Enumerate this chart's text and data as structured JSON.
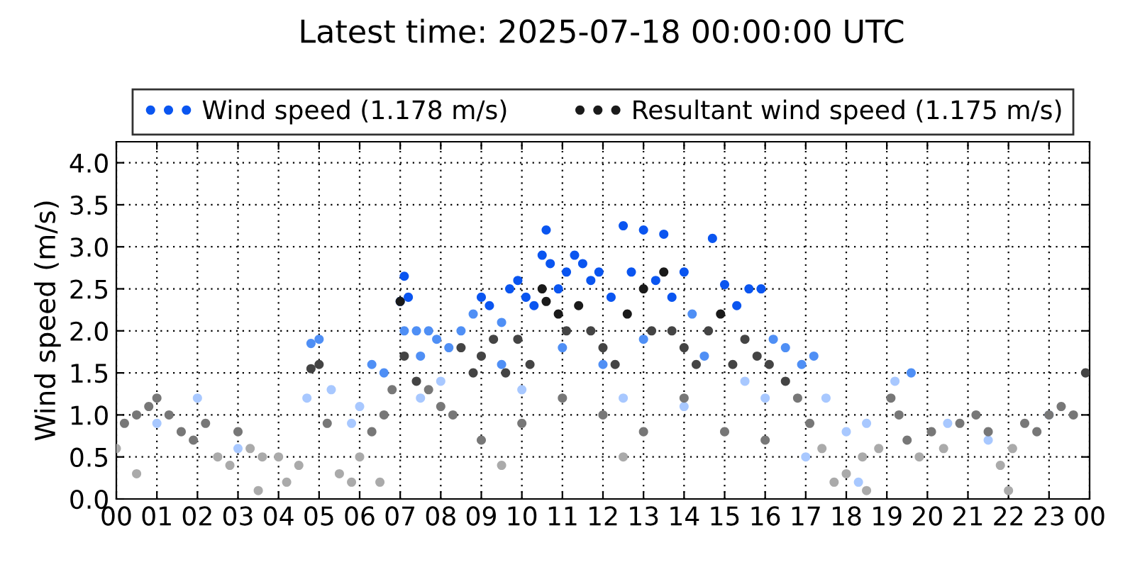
{
  "chart_data": {
    "type": "scatter",
    "title": "Latest time: 2025-07-18 00:00:00 UTC",
    "ylabel": "Wind speed (m/s)",
    "xlim": [
      0,
      24
    ],
    "ylim": [
      0,
      4.25
    ],
    "xticks": [
      {
        "value": 0,
        "label": "00"
      },
      {
        "value": 1,
        "label": "01"
      },
      {
        "value": 2,
        "label": "02"
      },
      {
        "value": 3,
        "label": "03"
      },
      {
        "value": 4,
        "label": "04"
      },
      {
        "value": 5,
        "label": "05"
      },
      {
        "value": 6,
        "label": "06"
      },
      {
        "value": 7,
        "label": "07"
      },
      {
        "value": 8,
        "label": "08"
      },
      {
        "value": 9,
        "label": "09"
      },
      {
        "value": 10,
        "label": "10"
      },
      {
        "value": 11,
        "label": "11"
      },
      {
        "value": 12,
        "label": "12"
      },
      {
        "value": 13,
        "label": "13"
      },
      {
        "value": 14,
        "label": "14"
      },
      {
        "value": 15,
        "label": "15"
      },
      {
        "value": 16,
        "label": "16"
      },
      {
        "value": 17,
        "label": "17"
      },
      {
        "value": 18,
        "label": "18"
      },
      {
        "value": 19,
        "label": "19"
      },
      {
        "value": 20,
        "label": "20"
      },
      {
        "value": 21,
        "label": "21"
      },
      {
        "value": 22,
        "label": "22"
      },
      {
        "value": 23,
        "label": "23"
      },
      {
        "value": 24,
        "label": "00"
      }
    ],
    "yticks": [
      {
        "value": 0,
        "label": "0.0"
      },
      {
        "value": 0.5,
        "label": "0.5"
      },
      {
        "value": 1,
        "label": "1.0"
      },
      {
        "value": 1.5,
        "label": "1.5"
      },
      {
        "value": 2,
        "label": "2.0"
      },
      {
        "value": 2.5,
        "label": "2.5"
      },
      {
        "value": 3,
        "label": "3.0"
      },
      {
        "value": 3.5,
        "label": "3.5"
      },
      {
        "value": 4,
        "label": "4.0"
      }
    ],
    "grid": true,
    "legend": "top",
    "marker": "circle",
    "series": [
      {
        "name": "Wind speed (1.178 m/s)",
        "color": "#0a55f0",
        "x": [
          4.8,
          5.0,
          4.7,
          5.3,
          5.8,
          6.3,
          6.6,
          7.0,
          7.1,
          7.2,
          7.1,
          7.4,
          7.5,
          7.7,
          7.9,
          8.2,
          8.5,
          8.8,
          9.0,
          9.2,
          9.5,
          9.7,
          9.9,
          10.1,
          10.3,
          10.5,
          10.6,
          10.7,
          10.9,
          11.1,
          11.3,
          11.5,
          11.7,
          11.9,
          12.2,
          12.5,
          12.7,
          13.0,
          13.3,
          13.5,
          13.7,
          14.0,
          14.2,
          14.7,
          15.0,
          15.3,
          15.6,
          15.9,
          16.2,
          16.5,
          16.9,
          17.2,
          17.5,
          18.0,
          18.5,
          19.2,
          19.6,
          20.5,
          21.5,
          23.0,
          2.0,
          3.0,
          1.0,
          6.0,
          8.0,
          9.5,
          11.0,
          12.0,
          13.0,
          14.5,
          15.5,
          16.0,
          17.0,
          18.3,
          7.5,
          10.0,
          12.5,
          14.0
        ],
        "values": [
          1.85,
          1.9,
          1.2,
          1.3,
          0.9,
          1.6,
          1.5,
          2.35,
          2.65,
          2.4,
          2.0,
          2.0,
          1.7,
          2.0,
          1.9,
          1.8,
          2.0,
          2.2,
          2.4,
          2.3,
          2.1,
          2.5,
          2.6,
          2.4,
          2.3,
          2.9,
          3.2,
          2.8,
          2.5,
          2.7,
          2.9,
          2.8,
          2.6,
          2.7,
          2.4,
          3.25,
          2.7,
          3.2,
          2.6,
          3.15,
          2.4,
          2.7,
          2.2,
          3.1,
          2.55,
          2.3,
          2.5,
          2.5,
          1.9,
          1.8,
          1.6,
          1.7,
          1.2,
          0.8,
          0.9,
          1.4,
          1.5,
          0.9,
          0.7,
          1.0,
          1.2,
          0.6,
          0.9,
          1.1,
          1.4,
          1.6,
          1.8,
          1.6,
          1.9,
          1.7,
          1.4,
          1.2,
          0.5,
          0.2,
          1.2,
          1.3,
          1.2,
          1.1
        ],
        "colors": [
          "#4f8ff5",
          "#4f8ff5",
          "#a8c8ff",
          "#a8c8ff",
          "#a8c8ff",
          "#4f8ff5",
          "#4f8ff5",
          "#0a55f0",
          "#0a55f0",
          "#0a55f0",
          "#4f8ff5",
          "#4f8ff5",
          "#4f8ff5",
          "#4f8ff5",
          "#4f8ff5",
          "#4f8ff5",
          "#4f8ff5",
          "#4f8ff5",
          "#0a55f0",
          "#0a55f0",
          "#4f8ff5",
          "#0a55f0",
          "#0a55f0",
          "#0a55f0",
          "#0a55f0",
          "#0a55f0",
          "#0a55f0",
          "#0a55f0",
          "#0a55f0",
          "#0a55f0",
          "#0a55f0",
          "#0a55f0",
          "#0a55f0",
          "#0a55f0",
          "#0a55f0",
          "#0a55f0",
          "#0a55f0",
          "#0a55f0",
          "#0a55f0",
          "#0a55f0",
          "#0a55f0",
          "#0a55f0",
          "#4f8ff5",
          "#0a55f0",
          "#0a55f0",
          "#0a55f0",
          "#0a55f0",
          "#0a55f0",
          "#4f8ff5",
          "#4f8ff5",
          "#4f8ff5",
          "#4f8ff5",
          "#a8c8ff",
          "#a8c8ff",
          "#a8c8ff",
          "#a8c8ff",
          "#4f8ff5",
          "#a8c8ff",
          "#a8c8ff",
          "#a8c8ff",
          "#a8c8ff",
          "#a8c8ff",
          "#a8c8ff",
          "#a8c8ff",
          "#a8c8ff",
          "#4f8ff5",
          "#4f8ff5",
          "#4f8ff5",
          "#4f8ff5",
          "#4f8ff5",
          "#a8c8ff",
          "#a8c8ff",
          "#a8c8ff",
          "#a8c8ff",
          "#a8c8ff",
          "#a8c8ff",
          "#a8c8ff",
          "#a8c8ff"
        ]
      },
      {
        "name": "Resultant wind speed (1.175 m/s)",
        "color": "#1a1a1a",
        "x": [
          0.0,
          0.2,
          0.5,
          0.8,
          1.0,
          1.3,
          1.6,
          1.9,
          2.2,
          2.5,
          2.8,
          3.0,
          3.3,
          3.6,
          4.0,
          4.2,
          4.5,
          4.8,
          5.0,
          5.2,
          5.5,
          5.8,
          6.0,
          6.3,
          6.6,
          6.8,
          7.0,
          7.1,
          7.4,
          7.7,
          8.0,
          8.3,
          8.5,
          8.8,
          9.0,
          9.3,
          9.6,
          9.9,
          10.2,
          10.5,
          10.6,
          10.9,
          11.1,
          11.4,
          11.7,
          12.0,
          12.3,
          12.6,
          13.0,
          13.2,
          13.5,
          13.7,
          14.0,
          14.3,
          14.6,
          14.9,
          15.2,
          15.5,
          15.8,
          16.1,
          16.5,
          16.8,
          17.1,
          17.4,
          17.7,
          18.0,
          18.4,
          18.8,
          19.1,
          19.3,
          19.5,
          19.8,
          20.1,
          20.4,
          20.8,
          21.2,
          21.5,
          21.8,
          22.1,
          22.4,
          22.7,
          23.0,
          23.3,
          23.6,
          23.9,
          0.5,
          3.5,
          6.5,
          9.0,
          10.0,
          11.0,
          12.0,
          13.0,
          14.0,
          15.0,
          16.0,
          18.5,
          22.0,
          12.5,
          9.5
        ],
        "values": [
          0.6,
          0.9,
          1.0,
          1.1,
          1.2,
          1.0,
          0.8,
          0.7,
          0.9,
          0.5,
          0.4,
          0.8,
          0.6,
          0.5,
          0.5,
          0.2,
          0.4,
          1.55,
          1.6,
          0.9,
          0.3,
          0.2,
          0.5,
          0.8,
          1.0,
          1.3,
          2.35,
          1.7,
          1.4,
          1.3,
          1.1,
          1.0,
          1.8,
          1.5,
          1.7,
          1.9,
          1.5,
          1.9,
          1.6,
          2.5,
          2.35,
          2.2,
          2.0,
          2.3,
          2.0,
          1.8,
          1.6,
          2.2,
          2.5,
          2.0,
          2.7,
          2.0,
          1.8,
          1.6,
          2.0,
          2.2,
          1.6,
          1.9,
          1.7,
          1.6,
          1.4,
          1.2,
          0.9,
          0.6,
          0.2,
          0.3,
          0.5,
          0.6,
          1.2,
          1.0,
          0.7,
          0.5,
          0.8,
          0.6,
          0.9,
          1.0,
          0.8,
          0.4,
          0.6,
          0.9,
          0.8,
          1.0,
          1.1,
          1.0,
          1.5,
          0.3,
          0.1,
          0.2,
          0.7,
          0.9,
          1.2,
          1.0,
          0.8,
          1.2,
          0.8,
          0.7,
          0.1,
          0.1,
          0.5,
          0.4
        ],
        "colors": [
          "#aaaaaa",
          "#777777",
          "#777777",
          "#777777",
          "#777777",
          "#777777",
          "#777777",
          "#777777",
          "#777777",
          "#aaaaaa",
          "#aaaaaa",
          "#777777",
          "#aaaaaa",
          "#aaaaaa",
          "#aaaaaa",
          "#aaaaaa",
          "#aaaaaa",
          "#444444",
          "#444444",
          "#777777",
          "#aaaaaa",
          "#aaaaaa",
          "#aaaaaa",
          "#777777",
          "#777777",
          "#777777",
          "#1a1a1a",
          "#444444",
          "#444444",
          "#777777",
          "#777777",
          "#777777",
          "#444444",
          "#444444",
          "#444444",
          "#444444",
          "#444444",
          "#444444",
          "#444444",
          "#1a1a1a",
          "#1a1a1a",
          "#1a1a1a",
          "#444444",
          "#1a1a1a",
          "#444444",
          "#444444",
          "#444444",
          "#1a1a1a",
          "#1a1a1a",
          "#444444",
          "#1a1a1a",
          "#444444",
          "#444444",
          "#444444",
          "#444444",
          "#1a1a1a",
          "#444444",
          "#444444",
          "#444444",
          "#444444",
          "#444444",
          "#777777",
          "#777777",
          "#aaaaaa",
          "#aaaaaa",
          "#aaaaaa",
          "#aaaaaa",
          "#aaaaaa",
          "#777777",
          "#777777",
          "#777777",
          "#aaaaaa",
          "#777777",
          "#aaaaaa",
          "#777777",
          "#777777",
          "#777777",
          "#aaaaaa",
          "#aaaaaa",
          "#777777",
          "#777777",
          "#777777",
          "#777777",
          "#777777",
          "#444444",
          "#aaaaaa",
          "#aaaaaa",
          "#aaaaaa",
          "#777777",
          "#777777",
          "#777777",
          "#777777",
          "#777777",
          "#777777",
          "#777777",
          "#777777",
          "#aaaaaa",
          "#aaaaaa",
          "#aaaaaa",
          "#aaaaaa"
        ]
      }
    ]
  }
}
